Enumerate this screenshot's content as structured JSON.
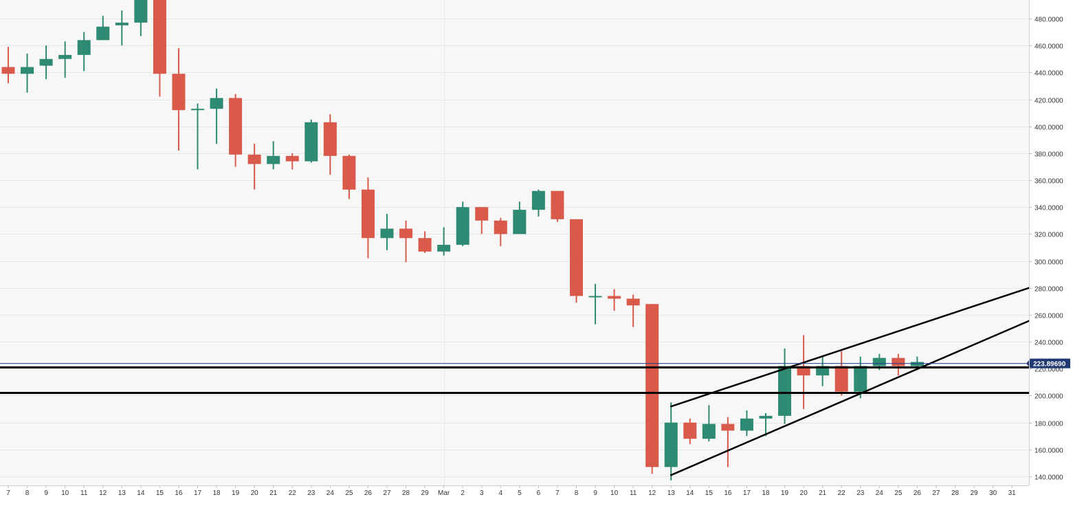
{
  "chart_data": {
    "type": "candlestick",
    "ylim": [
      133,
      500
    ],
    "ytick_labels": [
      "140.0000",
      "160.0000",
      "180.0000",
      "200.0000",
      "220.0000",
      "240.0000",
      "260.0000",
      "280.0000",
      "300.0000",
      "320.0000",
      "340.0000",
      "360.0000",
      "380.0000",
      "400.0000",
      "420.0000",
      "440.0000",
      "460.0000",
      "480.0000"
    ],
    "ytick_values": [
      140,
      160,
      180,
      200,
      220,
      240,
      260,
      280,
      300,
      320,
      340,
      360,
      380,
      400,
      420,
      440,
      460,
      480
    ],
    "x_labels": [
      "7",
      "8",
      "9",
      "10",
      "11",
      "12",
      "13",
      "14",
      "15",
      "16",
      "17",
      "18",
      "19",
      "20",
      "21",
      "22",
      "23",
      "24",
      "25",
      "26",
      "27",
      "28",
      "29",
      "Mar",
      "2",
      "3",
      "4",
      "5",
      "6",
      "7",
      "8",
      "9",
      "10",
      "11",
      "12",
      "13",
      "14",
      "15",
      "16",
      "17",
      "18",
      "19",
      "20",
      "21",
      "22",
      "23",
      "24",
      "25",
      "26",
      "27",
      "28",
      "29",
      "30",
      "31"
    ],
    "candles": [
      {
        "o": 444,
        "h": 459,
        "l": 432,
        "c": 439
      },
      {
        "o": 439,
        "h": 454,
        "l": 425,
        "c": 444
      },
      {
        "o": 445,
        "h": 460,
        "l": 435,
        "c": 450
      },
      {
        "o": 450,
        "h": 463,
        "l": 436,
        "c": 453
      },
      {
        "o": 453,
        "h": 470,
        "l": 441,
        "c": 464
      },
      {
        "o": 464,
        "h": 482,
        "l": 464,
        "c": 474
      },
      {
        "o": 475,
        "h": 486,
        "l": 460,
        "c": 477
      },
      {
        "o": 477,
        "h": 500,
        "l": 467,
        "c": 500
      },
      {
        "o": 500,
        "h": 500,
        "l": 422,
        "c": 439
      },
      {
        "o": 439,
        "h": 458,
        "l": 382,
        "c": 412
      },
      {
        "o": 412,
        "h": 417,
        "l": 368,
        "c": 413
      },
      {
        "o": 413,
        "h": 428,
        "l": 387,
        "c": 421
      },
      {
        "o": 421,
        "h": 424,
        "l": 370,
        "c": 379
      },
      {
        "o": 379,
        "h": 387,
        "l": 353,
        "c": 372
      },
      {
        "o": 372,
        "h": 389,
        "l": 368,
        "c": 378
      },
      {
        "o": 378,
        "h": 380,
        "l": 368,
        "c": 374
      },
      {
        "o": 374,
        "h": 405,
        "l": 373,
        "c": 403
      },
      {
        "o": 403,
        "h": 409,
        "l": 364,
        "c": 378
      },
      {
        "o": 378,
        "h": 379,
        "l": 346,
        "c": 353
      },
      {
        "o": 353,
        "h": 362,
        "l": 302,
        "c": 317
      },
      {
        "o": 317,
        "h": 335,
        "l": 308,
        "c": 324
      },
      {
        "o": 324,
        "h": 330,
        "l": 299,
        "c": 317
      },
      {
        "o": 317,
        "h": 322,
        "l": 306,
        "c": 307
      },
      {
        "o": 307,
        "h": 325,
        "l": 304,
        "c": 312
      },
      {
        "o": 312,
        "h": 344,
        "l": 311,
        "c": 340
      },
      {
        "o": 340,
        "h": 340,
        "l": 320,
        "c": 330
      },
      {
        "o": 330,
        "h": 332,
        "l": 311,
        "c": 320
      },
      {
        "o": 320,
        "h": 344,
        "l": 320,
        "c": 338
      },
      {
        "o": 338,
        "h": 353,
        "l": 333,
        "c": 352
      },
      {
        "o": 352,
        "h": 352,
        "l": 329,
        "c": 331
      },
      {
        "o": 331,
        "h": 331,
        "l": 269,
        "c": 274
      },
      {
        "o": 274,
        "h": 283,
        "l": 253,
        "c": 274
      },
      {
        "o": 274,
        "h": 279,
        "l": 263,
        "c": 272
      },
      {
        "o": 272,
        "h": 275,
        "l": 251,
        "c": 267
      },
      {
        "o": 268,
        "h": 268,
        "l": 142,
        "c": 147
      },
      {
        "o": 147,
        "h": 195,
        "l": 137,
        "c": 180
      },
      {
        "o": 180,
        "h": 183,
        "l": 164,
        "c": 168
      },
      {
        "o": 168,
        "h": 193,
        "l": 166,
        "c": 179
      },
      {
        "o": 179,
        "h": 184,
        "l": 147,
        "c": 174
      },
      {
        "o": 174,
        "h": 189,
        "l": 170,
        "c": 183
      },
      {
        "o": 183,
        "h": 187,
        "l": 170,
        "c": 185
      },
      {
        "o": 185,
        "h": 235,
        "l": 179,
        "c": 222
      },
      {
        "o": 222,
        "h": 245,
        "l": 190,
        "c": 215
      },
      {
        "o": 215,
        "h": 230,
        "l": 207,
        "c": 222
      },
      {
        "o": 222,
        "h": 233,
        "l": 200,
        "c": 203
      },
      {
        "o": 203,
        "h": 229,
        "l": 198,
        "c": 222
      },
      {
        "o": 222,
        "h": 231,
        "l": 219,
        "c": 228
      },
      {
        "o": 228,
        "h": 231,
        "l": 215,
        "c": 222
      },
      {
        "o": 222,
        "h": 229,
        "l": 219,
        "c": 225
      }
    ],
    "current_price": 223.8969,
    "current_price_label": "223.89690",
    "horizontal_levels": [
      221,
      202
    ],
    "trendlines": [
      {
        "x1": 35,
        "y1": 192,
        "x2": 53.9,
        "y2": 280
      },
      {
        "x1": 35,
        "y1": 141,
        "x2": 53.9,
        "y2": 255.5
      }
    ],
    "colors": {
      "up": "#2f8a73",
      "down": "#d9594a",
      "background": "#f7f7f7",
      "grid": "#e6e6e6",
      "axis_text": "#333333",
      "price_line": "#1e3f8a",
      "price_badge": "#1f3a73",
      "trendline": "#000000"
    }
  }
}
